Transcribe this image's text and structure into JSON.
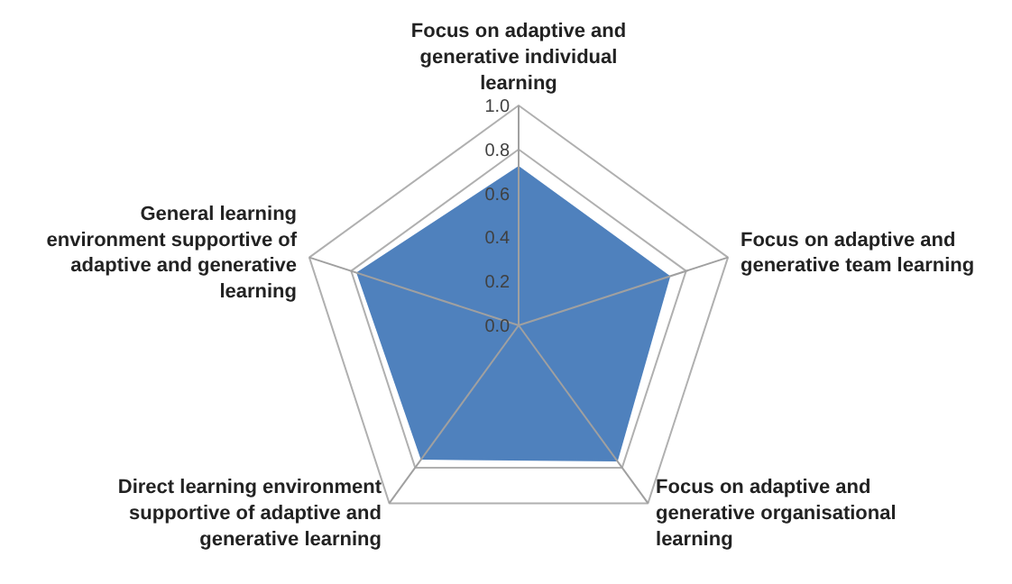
{
  "chart_data": {
    "type": "radar",
    "categories": [
      "Focus on adaptive and generative individual learning",
      "Focus on adaptive and generative team learning",
      "Focus on adaptive and generative organisational learning",
      "Direct learning environment supportive of adaptive and generative learning",
      "General learning environment supportive of adaptive and generative learning"
    ],
    "series": [
      {
        "color": "#4f81bd",
        "values": [
          0.72,
          0.72,
          0.76,
          0.75,
          0.77
        ]
      }
    ],
    "ylim": [
      0,
      1.0
    ],
    "yticks": [
      {
        "value": 0,
        "label": "0.0"
      },
      0.2,
      0.4,
      0.6,
      0.8,
      {
        "value": 1,
        "label": "1.0"
      }
    ],
    "grid": true
  }
}
